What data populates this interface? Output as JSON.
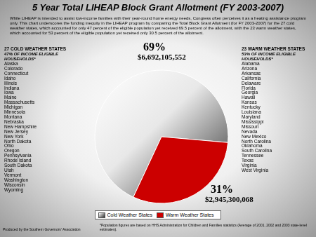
{
  "chart_data": {
    "type": "pie",
    "title": "5 Year Total LIHEAP Block Grant Allotment (FY 2003-2007)",
    "subtitle": "While LIHEAP is intended to assist low-income families with their year-round home energy needs, Congress often perceives it as a heating assistance program only. This chart underscores the funding inequity in the LIHEAP program by comparing the Total Block Grant Allotment (for FY 2003-2007) for the 27 cold weather states, which accounted for only 47 percent of the eligible population yet received 69.5 percent of the allotment, with the 23 warm weather states, which accounted for 53 percent of the eligible population yet received only 30.5 percent of the allotment.",
    "categories": [
      "Cold Weather States",
      "Warm Weather States"
    ],
    "values": [
      6692105552,
      2945300068
    ],
    "value_labels": [
      "$6,692,105,552",
      "$2,945,300,068"
    ],
    "percent_labels": [
      "69%",
      "31%"
    ],
    "colors": [
      "#2e2e2e",
      "#cc0000"
    ],
    "data_labels": true,
    "legend": "bottom",
    "groups": [
      {
        "title": "27 COLD WEATHER STATES",
        "subtitle": "47% OF INCOME ELIGIBLE HOUSEHOLDS*",
        "states": [
          "Alaska",
          "Colorado",
          "Connecticut",
          "Idaho",
          "Illinois",
          "Indiana",
          "Iowa",
          "Maine",
          "Massachusetts",
          "Michigan",
          "Minnesota",
          "Montana",
          "Nebraska",
          "New Hampshire",
          "New Jersey",
          "New York",
          "North Dakota",
          "Ohio",
          "Oregon",
          "Pennsylvania",
          "Rhode Island",
          "South Dakota",
          "Utah",
          "Vermont",
          "Washington",
          "Wisconsin",
          "Wyoming"
        ]
      },
      {
        "title": "23 WARM WEATHER STATES",
        "subtitle": "53% OF INCOME ELIGIBLE HOUSEHOLDS*",
        "states": [
          "Alabama",
          "Arizona",
          "Arkansas",
          "California",
          "Delaware",
          "Florida",
          "Georgia",
          "Hawaii",
          "Kansas",
          "Kentucky",
          "Louisiana",
          "Maryland",
          "Mississippi",
          "Missouri",
          "Nevada",
          "New Mexico",
          "North Carolina",
          "Oklahoma",
          "South Carolina",
          "Tennessee",
          "Texas",
          "Virginia",
          "West Virginia"
        ]
      }
    ],
    "source": "Produced by the Southern Governors' Association",
    "note": "*Population figures are based on HHS Administration for Children and Families statistics (Average of 2001, 2002 and 2003 state-level estimates)."
  }
}
